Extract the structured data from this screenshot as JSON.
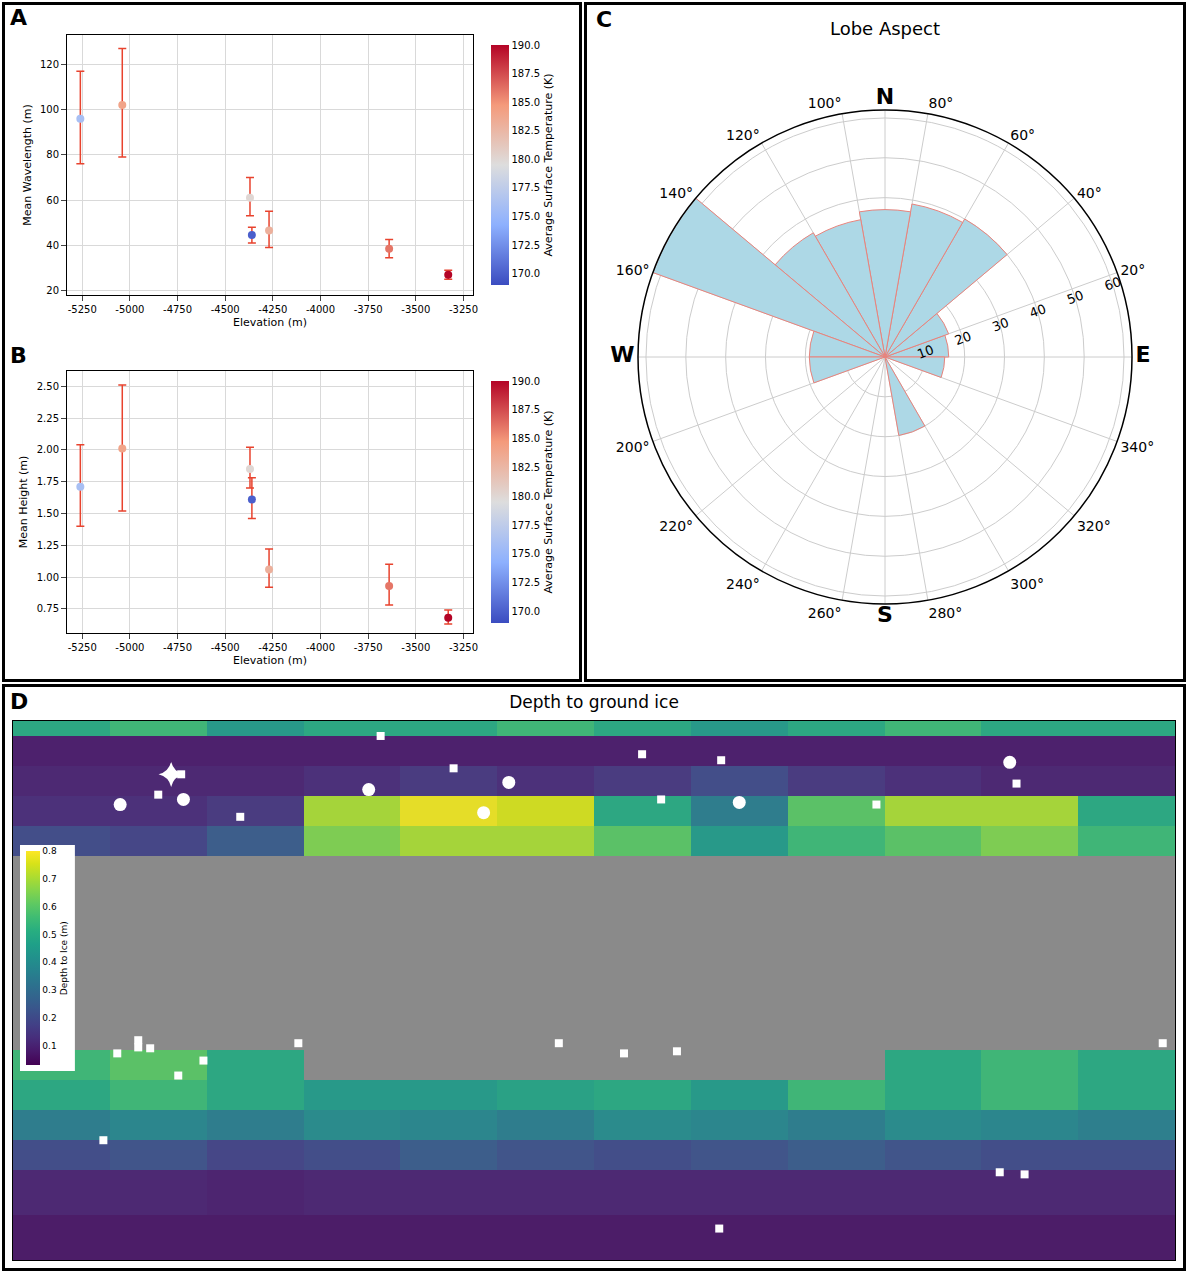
{
  "chart_data": [
    {
      "panel": "A",
      "type": "scatter",
      "marker": "circle",
      "color": "#e8432e",
      "grid": true,
      "x_label": "Elevation (m)",
      "y_label": "Mean Wavelength (m)",
      "x": [
        -5260,
        -5040,
        -4370,
        -4360,
        -4270,
        -3640,
        -3330
      ],
      "values": [
        96,
        102,
        61,
        44.5,
        46.5,
        38.5,
        27
      ],
      "error_minus": [
        20,
        23,
        8,
        3.5,
        7.5,
        4,
        2
      ],
      "error_plus": [
        21,
        25,
        9,
        3.5,
        8.5,
        4,
        2
      ],
      "temperature": [
        176,
        184,
        180,
        170,
        183,
        186,
        190
      ],
      "xlim": [
        -5330,
        -3200
      ],
      "xticks": [
        -5250,
        -5000,
        -4750,
        -4500,
        -4250,
        -4000,
        -3750,
        -3500,
        -3250
      ],
      "ylim": [
        18,
        133
      ],
      "yticks": [
        20,
        40,
        60,
        80,
        100,
        120
      ],
      "colorbar": {
        "label": "Average Surface Temperature (K)",
        "range": [
          169,
          190
        ],
        "ticks": [
          {
            "value": 170,
            "label": "170.0"
          },
          {
            "value": 172.5,
            "label": "172.5"
          },
          {
            "value": 175,
            "label": "175.0"
          },
          {
            "value": 177.5,
            "label": "177.5"
          },
          {
            "value": 180,
            "label": "180.0"
          },
          {
            "value": 182.5,
            "label": "182.5"
          },
          {
            "value": 185,
            "label": "185.0"
          },
          {
            "value": 187.5,
            "label": "187.5"
          },
          {
            "value": 190,
            "label": "190.0"
          }
        ]
      }
    },
    {
      "panel": "B",
      "type": "scatter",
      "marker": "circle",
      "color": "#e8432e",
      "grid": true,
      "x_label": "Elevation (m)",
      "y_label": "Mean Height (m)",
      "x": [
        -5260,
        -5040,
        -4370,
        -4360,
        -4270,
        -3640,
        -3330
      ],
      "values": [
        1.71,
        2.01,
        1.85,
        1.61,
        1.06,
        0.93,
        0.68
      ],
      "error_minus": [
        0.31,
        0.49,
        0.15,
        0.15,
        0.14,
        0.15,
        0.05
      ],
      "error_plus": [
        0.33,
        0.5,
        0.17,
        0.17,
        0.16,
        0.17,
        0.06
      ],
      "temperature": [
        176,
        184,
        180,
        170,
        183,
        186,
        190
      ],
      "xlim": [
        -5330,
        -3200
      ],
      "xticks": [
        -5250,
        -5000,
        -4750,
        -4500,
        -4250,
        -4000,
        -3750,
        -3500,
        -3250
      ],
      "ylim": [
        0.56,
        2.62
      ],
      "yticks": [
        0.75,
        {
          "value": 1,
          "label": "1.00"
        },
        1.25,
        {
          "value": 1.5,
          "label": "1.50"
        },
        1.75,
        {
          "value": 2,
          "label": "2.00"
        },
        2.25,
        {
          "value": 2.5,
          "label": "2.50"
        }
      ],
      "colorbar": {
        "label": "Average Surface Temperature (K)",
        "range": [
          169,
          190
        ],
        "ticks": [
          {
            "value": 170,
            "label": "170.0"
          },
          {
            "value": 172.5,
            "label": "172.5"
          },
          {
            "value": 175,
            "label": "175.0"
          },
          {
            "value": 177.5,
            "label": "177.5"
          },
          {
            "value": 180,
            "label": "180.0"
          },
          {
            "value": 182.5,
            "label": "182.5"
          },
          {
            "value": 185,
            "label": "185.0"
          },
          {
            "value": 187.5,
            "label": "187.5"
          },
          {
            "value": 190,
            "label": "190.0"
          }
        ]
      }
    },
    {
      "panel": "C",
      "type": "barpolar",
      "title": "Lobe Aspect",
      "color": "#add8e6",
      "grid": true,
      "bins": [
        0,
        20,
        40,
        60,
        80,
        100,
        120,
        140,
        160,
        180,
        200,
        220,
        240,
        260,
        280,
        300,
        320,
        340,
        360
      ],
      "values": [
        16,
        17,
        40,
        39,
        37,
        35,
        36,
        62,
        19,
        19,
        0,
        0,
        0,
        0,
        20,
        0,
        0,
        15
      ],
      "rlim": [
        0,
        62
      ],
      "rticks": [
        10,
        20,
        30,
        40,
        50,
        60
      ],
      "angular_ticks": [
        {
          "value": 0,
          "label": "E"
        },
        {
          "value": 20,
          "label": "20°"
        },
        {
          "value": 40,
          "label": "40°"
        },
        {
          "value": 60,
          "label": "60°"
        },
        {
          "value": 80,
          "label": "80°"
        },
        {
          "value": 90,
          "label": "N"
        },
        {
          "value": 100,
          "label": "100°"
        },
        {
          "value": 120,
          "label": "120°"
        },
        {
          "value": 140,
          "label": "140°"
        },
        {
          "value": 160,
          "label": "160°"
        },
        {
          "value": 180,
          "label": "W"
        },
        {
          "value": 200,
          "label": "200°"
        },
        {
          "value": 220,
          "label": "220°"
        },
        {
          "value": 240,
          "label": "240°"
        },
        {
          "value": 260,
          "label": "260°"
        },
        {
          "value": 270,
          "label": "S"
        },
        {
          "value": 280,
          "label": "280°"
        },
        {
          "value": 300,
          "label": "300°"
        },
        {
          "value": 320,
          "label": "320°"
        },
        {
          "value": 340,
          "label": "340°"
        }
      ]
    },
    {
      "panel": "D",
      "type": "heatmap",
      "title": "Depth to ground ice",
      "grid": false,
      "tick_labels": false,
      "xlim": [
        -180,
        180
      ],
      "ylim": [
        -90,
        90
      ],
      "x_edges": [
        -180,
        -150,
        -120,
        -90,
        -60,
        -30,
        0,
        30,
        60,
        90,
        120,
        150,
        180
      ],
      "y_edges": [
        -90,
        -75,
        -60,
        -50,
        -40,
        -30,
        -20,
        45,
        55,
        65,
        75,
        85,
        90
      ],
      "z": [
        [
          0.07,
          0.07,
          0.07,
          0.07,
          0.07,
          0.07,
          0.07,
          0.07,
          0.07,
          0.07,
          0.07,
          0.07
        ],
        [
          0.1,
          0.1,
          0.09,
          0.1,
          0.1,
          0.1,
          0.1,
          0.1,
          0.1,
          0.1,
          0.1,
          0.1
        ],
        [
          0.2,
          0.22,
          0.18,
          0.2,
          0.25,
          0.22,
          0.2,
          0.22,
          0.25,
          0.22,
          0.2,
          0.2
        ],
        [
          0.35,
          0.38,
          0.35,
          0.4,
          0.38,
          0.35,
          0.4,
          0.38,
          0.35,
          0.4,
          0.38,
          0.36
        ],
        [
          0.5,
          0.55,
          0.5,
          0.45,
          0.45,
          0.48,
          0.5,
          0.45,
          0.55,
          0.5,
          0.55,
          0.5
        ],
        [
          0.55,
          0.6,
          0.5,
          null,
          null,
          null,
          null,
          null,
          null,
          0.5,
          0.55,
          0.5
        ],
        [
          null,
          null,
          null,
          null,
          null,
          null,
          null,
          null,
          null,
          null,
          null,
          null
        ],
        [
          0.2,
          0.18,
          0.25,
          0.65,
          0.7,
          0.7,
          0.6,
          0.45,
          0.55,
          0.6,
          0.65,
          0.55
        ],
        [
          0.12,
          0.12,
          0.15,
          0.7,
          0.78,
          0.75,
          0.5,
          0.35,
          0.6,
          0.7,
          0.7,
          0.5
        ],
        [
          0.1,
          0.1,
          0.1,
          0.12,
          0.15,
          0.12,
          0.15,
          0.2,
          0.15,
          0.12,
          0.1,
          0.1
        ],
        [
          0.08,
          0.08,
          0.08,
          0.08,
          0.08,
          0.08,
          0.08,
          0.08,
          0.08,
          0.08,
          0.08,
          0.08
        ],
        [
          0.5,
          0.55,
          0.45,
          0.5,
          0.5,
          0.55,
          0.5,
          0.45,
          0.5,
          0.55,
          0.5,
          0.5
        ]
      ],
      "colorbar": {
        "label": "Depth to Ice (m)",
        "range": [
          0.03,
          0.8
        ],
        "ticks": [
          0.1,
          0.2,
          0.3,
          0.4,
          0.5,
          0.6,
          0.7,
          0.8
        ]
      },
      "series": [
        {
          "marker": "circle",
          "color": "#ffffff",
          "x": [
            -146.8,
            -127.2,
            -69.8,
            -34.2,
            -26.4,
            45,
            128.8
          ],
          "y": [
            62.1,
            63.8,
            67.1,
            59.4,
            69.5,
            62.8,
            76.2
          ]
        },
        {
          "marker": "square",
          "color": "#ffffff",
          "x": [
            -127.9,
            -135,
            -109.6,
            -66.1,
            -43.5,
            14.9,
            39.4,
            20.8,
            87.5,
            130.9,
            -147.7,
            -141.2,
            -141.2,
            -137.5,
            -121,
            -128.8,
            -91.6,
            -152,
            -10.9,
            9.3,
            25.7,
            176.2,
            125.7,
            133.4,
            38.8
          ],
          "y": [
            72.2,
            65.4,
            58,
            85,
            74.2,
            78.9,
            76.9,
            63.8,
            62.1,
            69.1,
            -21,
            -16.6,
            -19,
            -19.3,
            -23.4,
            -28.4,
            -17.6,
            -50,
            -17.6,
            -21,
            -20.3,
            -17.6,
            -60.7,
            -61.4,
            -79.5
          ]
        },
        {
          "marker": "star-diamond",
          "color": "#ffffff",
          "x": [
            -131
          ],
          "y": [
            72.2
          ]
        }
      ]
    }
  ]
}
